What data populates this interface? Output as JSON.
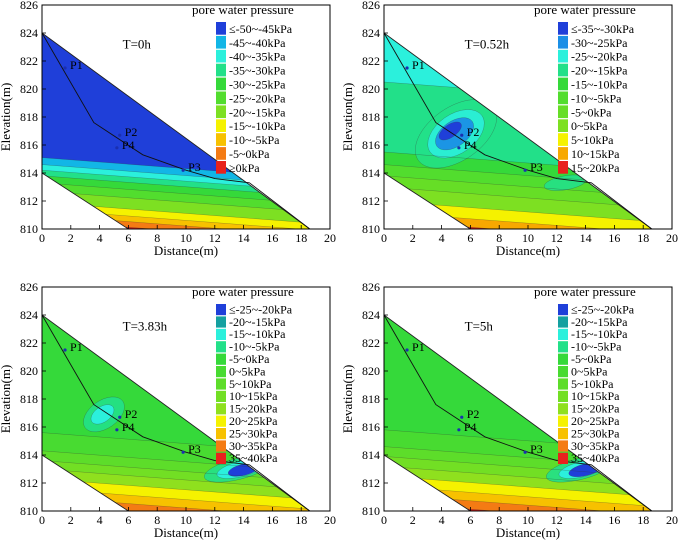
{
  "figure_type": "contour",
  "chart_data": [
    {
      "type": "contour",
      "title": "T=0h",
      "xlabel": "Distance(m)",
      "ylabel": "Elevation(m)",
      "xlim": [
        0,
        20
      ],
      "ylim": [
        810,
        826
      ],
      "xticks": [
        "0",
        "2",
        "4",
        "6",
        "8",
        "10",
        "12",
        "14",
        "16",
        "18",
        "20"
      ],
      "yticks": [
        "810",
        "812",
        "814",
        "816",
        "818",
        "820",
        "822",
        "824",
        "826"
      ],
      "legend_title": "pore water pressure",
      "legend": [
        {
          "label": "≤-50~-45kPa",
          "color": "#1f3fd9"
        },
        {
          "label": "-45~-40kPa",
          "color": "#12b6e6"
        },
        {
          "label": "-40~-35kPa",
          "color": "#2bf0dc"
        },
        {
          "label": "-35~-30kPa",
          "color": "#22e089"
        },
        {
          "label": "-30~-25kPa",
          "color": "#35d93a"
        },
        {
          "label": "-25~-20kPa",
          "color": "#52dd2e"
        },
        {
          "label": "-20~-15kPa",
          "color": "#7de022"
        },
        {
          "label": "-15~-10kPa",
          "color": "#f5f200"
        },
        {
          "label": "-10~-5kPa",
          "color": "#f7c100"
        },
        {
          "label": "-5~0kPa",
          "color": "#f47b14"
        },
        {
          "label": "≥0kPa",
          "color": "#e8221e"
        }
      ],
      "points": [
        {
          "name": "P1",
          "x": 1.6,
          "y": 821.5
        },
        {
          "name": "P2",
          "x": 5.4,
          "y": 816.7
        },
        {
          "name": "P4",
          "x": 5.2,
          "y": 815.8
        },
        {
          "name": "P3",
          "x": 9.8,
          "y": 814.2
        }
      ]
    },
    {
      "type": "contour",
      "title": "T=0.52h",
      "xlabel": "Distance(m)",
      "ylabel": "Elevation(m)",
      "xlim": [
        0,
        20
      ],
      "ylim": [
        810,
        826
      ],
      "xticks": [
        "0",
        "2",
        "4",
        "6",
        "8",
        "10",
        "12",
        "14",
        "16",
        "18",
        "20"
      ],
      "yticks": [
        "810",
        "812",
        "814",
        "816",
        "818",
        "820",
        "822",
        "824",
        "826"
      ],
      "legend_title": "pore water pressure",
      "legend": [
        {
          "label": "≤-35~-30kPa",
          "color": "#1f3fd9"
        },
        {
          "label": "-30~-25kPa",
          "color": "#1a8fe6"
        },
        {
          "label": "-25~-20kPa",
          "color": "#2bf0dc"
        },
        {
          "label": "-20~-15kPa",
          "color": "#22e089"
        },
        {
          "label": "-15~-10kPa",
          "color": "#35d93a"
        },
        {
          "label": "-10~-5kPa",
          "color": "#52dd2e"
        },
        {
          "label": "-5~0kPa",
          "color": "#66de26"
        },
        {
          "label": "0~5kPa",
          "color": "#7de022"
        },
        {
          "label": "5~10kPa",
          "color": "#f5f200"
        },
        {
          "label": "10~15kPa",
          "color": "#f7a800"
        },
        {
          "label": "15~20kPa",
          "color": "#e8221e"
        }
      ],
      "points": [
        {
          "name": "P1",
          "x": 1.6,
          "y": 821.5
        },
        {
          "name": "P2",
          "x": 5.4,
          "y": 816.7
        },
        {
          "name": "P4",
          "x": 5.2,
          "y": 815.8
        },
        {
          "name": "P3",
          "x": 9.8,
          "y": 814.2
        }
      ]
    },
    {
      "type": "contour",
      "title": "T=3.83h",
      "xlabel": "Distance(m)",
      "ylabel": "Elevation(m)",
      "xlim": [
        0,
        20
      ],
      "ylim": [
        810,
        826
      ],
      "xticks": [
        "0",
        "2",
        "4",
        "6",
        "8",
        "10",
        "12",
        "14",
        "16",
        "18",
        "20"
      ],
      "yticks": [
        "810",
        "812",
        "814",
        "816",
        "818",
        "820",
        "822",
        "824",
        "826"
      ],
      "legend_title": "pore water pressure",
      "legend": [
        {
          "label": "≤-25~-20kPa",
          "color": "#1f3fd9"
        },
        {
          "label": "-20~-15kPa",
          "color": "#14a0a0"
        },
        {
          "label": "-15~-10kPa",
          "color": "#2bf0dc"
        },
        {
          "label": "-10~-5kPa",
          "color": "#22e089"
        },
        {
          "label": "-5~0kPa",
          "color": "#35d93a"
        },
        {
          "label": "0~5kPa",
          "color": "#48db31"
        },
        {
          "label": "5~10kPa",
          "color": "#5ddd2a"
        },
        {
          "label": "10~15kPa",
          "color": "#72df24"
        },
        {
          "label": "15~20kPa",
          "color": "#8fe01e"
        },
        {
          "label": "20~25kPa",
          "color": "#f5f200"
        },
        {
          "label": "25~30kPa",
          "color": "#f7c100"
        },
        {
          "label": "30~35kPa",
          "color": "#f47b14"
        },
        {
          "label": "35~40kPa",
          "color": "#e8221e"
        }
      ],
      "points": [
        {
          "name": "P1",
          "x": 1.6,
          "y": 821.5
        },
        {
          "name": "P2",
          "x": 5.4,
          "y": 816.7
        },
        {
          "name": "P4",
          "x": 5.2,
          "y": 815.8
        },
        {
          "name": "P3",
          "x": 9.8,
          "y": 814.2
        }
      ]
    },
    {
      "type": "contour",
      "title": "T=5h",
      "xlabel": "Distance(m)",
      "ylabel": "Elevation(m)",
      "xlim": [
        0,
        20
      ],
      "ylim": [
        810,
        826
      ],
      "xticks": [
        "0",
        "2",
        "4",
        "6",
        "8",
        "10",
        "12",
        "14",
        "16",
        "18",
        "20"
      ],
      "yticks": [
        "810",
        "812",
        "814",
        "816",
        "818",
        "820",
        "822",
        "824",
        "826"
      ],
      "legend_title": "pore water pressure",
      "legend": [
        {
          "label": "≤-25~-20kPa",
          "color": "#1f3fd9"
        },
        {
          "label": "-20~-15kPa",
          "color": "#14a0a0"
        },
        {
          "label": "-15~-10kPa",
          "color": "#2bf0dc"
        },
        {
          "label": "-10~-5kPa",
          "color": "#22e089"
        },
        {
          "label": "-5~0kPa",
          "color": "#35d93a"
        },
        {
          "label": "0~5kPa",
          "color": "#48db31"
        },
        {
          "label": "5~10kPa",
          "color": "#5ddd2a"
        },
        {
          "label": "10~15kPa",
          "color": "#72df24"
        },
        {
          "label": "15~20kPa",
          "color": "#8fe01e"
        },
        {
          "label": "20~25kPa",
          "color": "#f5f200"
        },
        {
          "label": "25~30kPa",
          "color": "#f7c100"
        },
        {
          "label": "30~35kPa",
          "color": "#f47b14"
        },
        {
          "label": "35~40kPa",
          "color": "#e8221e"
        }
      ],
      "points": [
        {
          "name": "P1",
          "x": 1.6,
          "y": 821.5
        },
        {
          "name": "P2",
          "x": 5.4,
          "y": 816.7
        },
        {
          "name": "P4",
          "x": 5.2,
          "y": 815.8
        },
        {
          "name": "P3",
          "x": 9.8,
          "y": 814.2
        }
      ]
    }
  ],
  "slope_profile": {
    "surface": [
      [
        0,
        824
      ],
      [
        18.6,
        810
      ]
    ],
    "bottom_left": [
      6,
      810
    ],
    "bottom_left_edge": [
      0,
      814
    ],
    "slip_surface": [
      [
        0,
        824
      ],
      [
        3.6,
        817.6
      ],
      [
        7,
        815.3
      ],
      [
        10,
        814.2
      ],
      [
        12,
        813.6
      ],
      [
        14.4,
        813.3
      ],
      [
        18.6,
        810
      ]
    ]
  }
}
